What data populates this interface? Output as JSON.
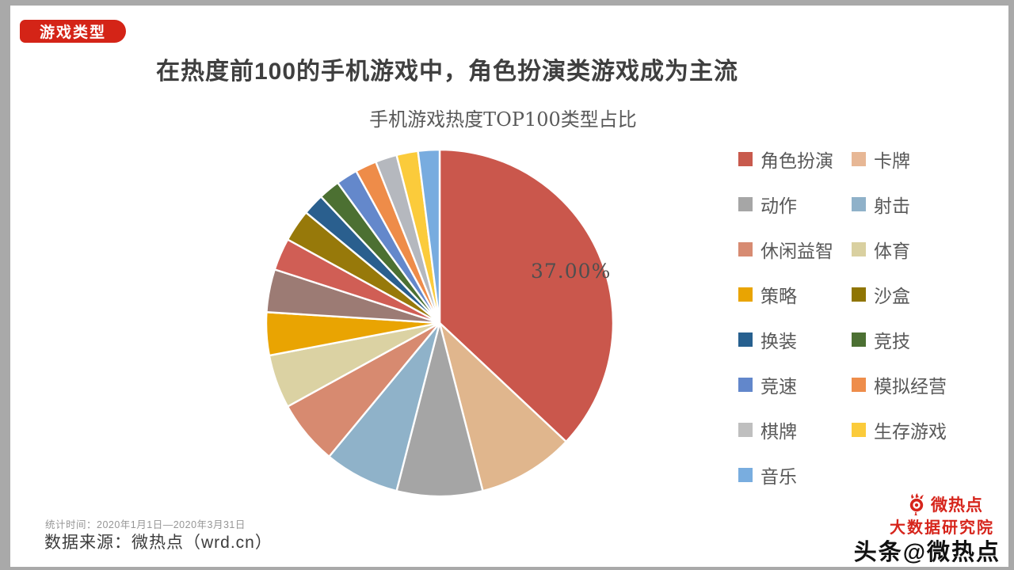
{
  "badge": {
    "label": "游戏类型"
  },
  "title": "在热度前100的手机游戏中，角色扮演类游戏成为主流",
  "chart_data": {
    "type": "pie",
    "title": "手机游戏热度TOP100类型占比",
    "start_angle_deg": 0,
    "direction": "clockwise",
    "legend_position": "right",
    "datalabel": {
      "text": "37.00%",
      "slice": "角色扮演"
    },
    "slices": [
      {
        "label": "角色扮演",
        "value": 37,
        "color": "#CA574C"
      },
      {
        "label": "卡牌",
        "value": 9,
        "color": "#E0B68D"
      },
      {
        "label": "动作",
        "value": 8,
        "color": "#A5A5A5"
      },
      {
        "label": "射击",
        "value": 7,
        "color": "#8FB2C9"
      },
      {
        "label": "休闲益智",
        "value": 6,
        "color": "#D78A70"
      },
      {
        "label": "体育",
        "value": 5,
        "color": "#DBD2A3"
      },
      {
        "label": "策略",
        "value": 4,
        "color": "#E9A402"
      },
      {
        "label": "",
        "value": 4,
        "color": "#9C7B74"
      },
      {
        "label": "",
        "value": 3,
        "color": "#D05E55"
      },
      {
        "label": "沙盒",
        "value": 3,
        "color": "#97790A"
      },
      {
        "label": "换装",
        "value": 2,
        "color": "#2A5F8E"
      },
      {
        "label": "竞技",
        "value": 2,
        "color": "#4C7032"
      },
      {
        "label": "竞速",
        "value": 2,
        "color": "#6488CB"
      },
      {
        "label": "模拟经营",
        "value": 2,
        "color": "#EE8C49"
      },
      {
        "label": "棋牌",
        "value": 2,
        "color": "#B5B8BE"
      },
      {
        "label": "生存游戏",
        "value": 2,
        "color": "#FBCB3B"
      },
      {
        "label": "音乐",
        "value": 2,
        "color": "#78ACDF"
      }
    ],
    "legend": [
      {
        "label": "角色扮演",
        "color": "#C85A4D"
      },
      {
        "label": "卡牌",
        "color": "#E7B795"
      },
      {
        "label": "动作",
        "color": "#A6A6A6"
      },
      {
        "label": "射击",
        "color": "#8FB1C9"
      },
      {
        "label": "休闲益智",
        "color": "#D78B72"
      },
      {
        "label": "体育",
        "color": "#D9D0A0"
      },
      {
        "label": "策略",
        "color": "#E9A402"
      },
      {
        "label": "沙盒",
        "color": "#8F7503"
      },
      {
        "label": "换装",
        "color": "#27608F"
      },
      {
        "label": "竞技",
        "color": "#4C7033"
      },
      {
        "label": "竞速",
        "color": "#6287CB"
      },
      {
        "label": "模拟经营",
        "color": "#EE8D4B"
      },
      {
        "label": "棋牌",
        "color": "#BFBFBF"
      },
      {
        "label": "生存游戏",
        "color": "#FBCB3B"
      },
      {
        "label": "音乐",
        "color": "#79ADDF"
      }
    ]
  },
  "footer": {
    "stat_time": "统计时间：2020年1月1日—2020年3月31日",
    "data_source": "数据来源：微热点（wrd.cn）"
  },
  "branding": {
    "logo_name": "微热点",
    "org_name": "大数据研究院",
    "social_handle": "头条@微热点",
    "brand_red": "#D6251C"
  }
}
